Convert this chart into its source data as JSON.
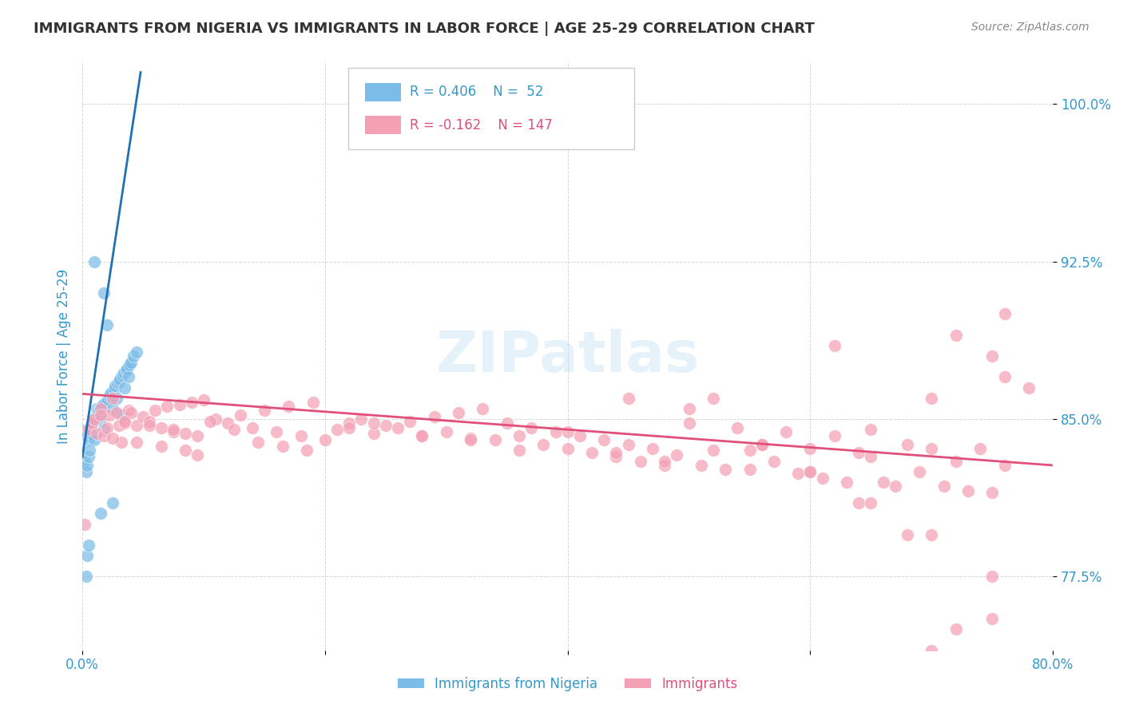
{
  "title": "IMMIGRANTS FROM NIGERIA VS IMMIGRANTS IN LABOR FORCE | AGE 25-29 CORRELATION CHART",
  "source": "Source: ZipAtlas.com",
  "ylabel": "In Labor Force | Age 25-29",
  "xlim": [
    0.0,
    80.0
  ],
  "ylim": [
    74.0,
    102.0
  ],
  "yticks": [
    77.5,
    85.0,
    92.5,
    100.0
  ],
  "ytick_labels": [
    "77.5%",
    "85.0%",
    "92.5%",
    "100.0%"
  ],
  "xticks": [
    0.0,
    20.0,
    40.0,
    60.0,
    80.0
  ],
  "xtick_labels": [
    "0.0%",
    "",
    "",
    "",
    "80.0%"
  ],
  "blue_color": "#7bbde8",
  "pink_color": "#f4a0b5",
  "blue_line_color": "#2171b5",
  "pink_line_color": "#e0507a",
  "axis_label_color": "#3399cc",
  "watermark": "ZIPatlas",
  "blue_scatter_x": [
    0.2,
    0.3,
    0.4,
    0.5,
    0.6,
    0.7,
    0.8,
    0.9,
    1.0,
    1.1,
    1.2,
    1.3,
    1.4,
    1.5,
    1.6,
    1.7,
    1.8,
    1.9,
    2.0,
    2.1,
    2.2,
    2.3,
    2.4,
    2.5,
    2.6,
    2.7,
    2.8,
    2.9,
    3.0,
    3.1,
    3.2,
    3.3,
    3.4,
    3.5,
    3.6,
    3.7,
    3.8,
    3.9,
    4.0,
    4.2,
    4.5,
    1.0,
    1.8,
    0.3,
    0.4,
    0.5,
    0.6,
    0.3,
    0.4,
    0.5,
    1.5,
    2.5
  ],
  "blue_scatter_y": [
    83.0,
    84.5,
    84.2,
    84.0,
    84.6,
    84.3,
    84.8,
    84.9,
    92.5,
    85.1,
    85.5,
    85.3,
    85.4,
    85.0,
    85.6,
    85.7,
    91.0,
    85.8,
    89.5,
    85.9,
    86.1,
    86.2,
    86.3,
    85.5,
    86.4,
    86.6,
    86.0,
    86.7,
    86.8,
    86.9,
    85.2,
    87.1,
    87.2,
    86.5,
    87.3,
    87.4,
    87.0,
    87.6,
    87.7,
    88.0,
    88.2,
    84.0,
    84.5,
    82.5,
    82.8,
    83.2,
    83.5,
    77.5,
    78.5,
    79.0,
    80.5,
    81.0
  ],
  "pink_scatter_x": [
    0.2,
    0.5,
    0.8,
    1.0,
    1.2,
    1.5,
    1.8,
    2.0,
    2.2,
    2.5,
    2.8,
    3.0,
    3.2,
    3.5,
    3.8,
    4.0,
    4.5,
    5.0,
    5.5,
    6.0,
    6.5,
    7.0,
    7.5,
    8.0,
    8.5,
    9.0,
    9.5,
    10.0,
    11.0,
    12.0,
    13.0,
    14.0,
    15.0,
    16.0,
    17.0,
    18.0,
    19.0,
    20.0,
    21.0,
    22.0,
    23.0,
    24.0,
    25.0,
    26.0,
    27.0,
    28.0,
    29.0,
    30.0,
    31.0,
    32.0,
    33.0,
    34.0,
    35.0,
    36.0,
    37.0,
    38.0,
    39.0,
    40.0,
    41.0,
    42.0,
    43.0,
    44.0,
    45.0,
    46.0,
    47.0,
    48.0,
    49.0,
    50.0,
    51.0,
    52.0,
    53.0,
    54.0,
    55.0,
    56.0,
    57.0,
    58.0,
    59.0,
    60.0,
    61.0,
    62.0,
    63.0,
    64.0,
    65.0,
    66.0,
    67.0,
    68.0,
    69.0,
    70.0,
    71.0,
    72.0,
    73.0,
    74.0,
    75.0,
    76.0,
    1.5,
    2.5,
    3.5,
    4.5,
    5.5,
    6.5,
    7.5,
    8.5,
    9.5,
    10.5,
    12.5,
    14.5,
    16.5,
    18.5,
    22.0,
    24.0,
    28.0,
    32.0,
    36.0,
    40.0,
    44.0,
    48.0,
    52.0,
    56.0,
    60.0,
    64.0,
    68.0,
    72.0,
    76.0,
    62.0,
    70.0,
    65.0,
    75.0,
    70.0,
    72.0,
    75.0,
    76.0,
    78.0,
    45.0,
    50.0,
    55.0,
    60.0,
    65.0,
    70.0,
    75.0,
    76.0,
    77.0,
    78.0,
    79.0
  ],
  "pink_scatter_y": [
    80.0,
    84.5,
    84.8,
    85.0,
    84.3,
    85.5,
    84.2,
    84.6,
    85.2,
    86.0,
    85.3,
    84.7,
    83.9,
    84.8,
    85.4,
    85.3,
    84.7,
    85.1,
    84.9,
    85.4,
    84.6,
    85.6,
    84.4,
    85.7,
    84.3,
    85.8,
    84.2,
    85.9,
    85.0,
    84.8,
    85.2,
    84.6,
    85.4,
    84.4,
    85.6,
    84.2,
    85.8,
    84.0,
    84.5,
    84.8,
    85.0,
    84.3,
    84.7,
    84.6,
    84.9,
    84.2,
    85.1,
    84.4,
    85.3,
    84.1,
    85.5,
    84.0,
    84.8,
    83.5,
    84.6,
    83.8,
    84.4,
    83.6,
    84.2,
    83.4,
    84.0,
    83.2,
    83.8,
    83.0,
    83.6,
    82.8,
    83.3,
    84.8,
    82.8,
    86.0,
    82.6,
    84.6,
    82.6,
    83.8,
    83.0,
    84.4,
    82.4,
    83.6,
    82.2,
    84.2,
    82.0,
    83.4,
    83.2,
    82.0,
    81.8,
    83.8,
    82.5,
    83.6,
    81.8,
    83.0,
    81.6,
    83.6,
    81.5,
    82.8,
    85.2,
    84.1,
    84.9,
    83.9,
    84.7,
    83.7,
    84.5,
    83.5,
    83.3,
    84.9,
    84.5,
    83.9,
    83.7,
    83.5,
    84.6,
    84.8,
    84.2,
    84.0,
    84.2,
    84.4,
    83.4,
    83.0,
    83.5,
    83.8,
    82.5,
    81.0,
    79.5,
    75.0,
    90.0,
    88.5,
    86.0,
    84.5,
    77.5,
    74.0,
    89.0,
    88.0,
    87.0,
    86.5,
    86.0,
    85.5,
    83.5,
    82.5,
    81.0,
    79.5,
    75.5
  ],
  "blue_trend_x": [
    0.0,
    4.8
  ],
  "blue_trend_y": [
    83.2,
    101.5
  ],
  "pink_trend_x": [
    0.0,
    80.0
  ],
  "pink_trend_y": [
    86.2,
    82.8
  ]
}
